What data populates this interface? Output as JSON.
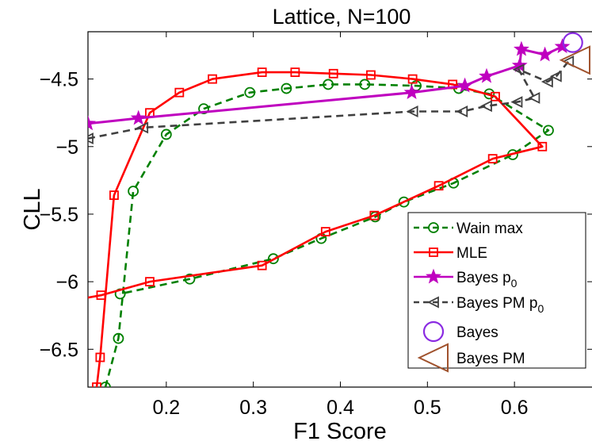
{
  "chart_data": {
    "type": "line",
    "title": "Lattice, N=100",
    "xlabel": "F1 Score",
    "ylabel": "CLL",
    "xlim": [
      0.11,
      0.69
    ],
    "ylim": [
      -6.78,
      -4.15
    ],
    "xticks": [
      0.2,
      0.3,
      0.4,
      0.5,
      0.6
    ],
    "yticks": [
      -6.5,
      -6,
      -5.5,
      -5,
      -4.5
    ],
    "xtick_labels": [
      "0.2",
      "0.3",
      "0.4",
      "0.5",
      "0.6"
    ],
    "ytick_labels": [
      "−6.5",
      "−6",
      "−5.5",
      "−5",
      "−4.5"
    ],
    "grid": false,
    "legend_position": "lower-right",
    "series": [
      {
        "name": "Wain max",
        "color": "#008000",
        "line_style": "dashed",
        "marker": "circle",
        "x": [
          0.13,
          0.145,
          0.162,
          0.2,
          0.243,
          0.296,
          0.338,
          0.386,
          0.428,
          0.487,
          0.536,
          0.571,
          0.639,
          0.598,
          0.53,
          0.473,
          0.44,
          0.378,
          0.323,
          0.227,
          0.147
        ],
        "y": [
          -6.78,
          -6.42,
          -5.33,
          -4.91,
          -4.72,
          -4.6,
          -4.57,
          -4.54,
          -4.54,
          -4.55,
          -4.57,
          -4.61,
          -4.88,
          -5.06,
          -5.27,
          -5.41,
          -5.52,
          -5.68,
          -5.83,
          -5.98,
          -6.09
        ]
      },
      {
        "name": "MLE",
        "color": "#ff0000",
        "line_style": "solid",
        "marker": "square",
        "x": [
          0.12,
          0.124,
          0.14,
          0.181,
          0.215,
          0.253,
          0.31,
          0.348,
          0.392,
          0.435,
          0.483,
          0.529,
          0.578,
          0.632,
          0.575,
          0.513,
          0.439,
          0.383,
          0.31,
          0.181,
          0.125,
          0.108
        ],
        "y": [
          -6.78,
          -6.56,
          -5.36,
          -4.75,
          -4.6,
          -4.5,
          -4.45,
          -4.45,
          -4.46,
          -4.47,
          -4.5,
          -4.54,
          -4.63,
          -5,
          -5.09,
          -5.29,
          -5.51,
          -5.63,
          -5.88,
          -6.0,
          -6.1,
          -6.12
        ]
      },
      {
        "name": "Bayes p0",
        "color": "#bf00bf",
        "line_style": "solid",
        "marker": "star",
        "x": [
          0.11,
          0.168,
          0.482,
          0.543,
          0.568,
          0.606,
          0.608,
          0.635,
          0.655
        ],
        "y": [
          -4.83,
          -4.79,
          -4.6,
          -4.55,
          -4.48,
          -4.4,
          -4.28,
          -4.32,
          -4.26
        ]
      },
      {
        "name": "Bayes PM p0",
        "color": "#404040",
        "line_style": "dashed",
        "marker": "triangle-left",
        "x": [
          0.11,
          0.173,
          0.483,
          0.54,
          0.568,
          0.603,
          0.623,
          0.605,
          0.638,
          0.648,
          0.662
        ],
        "y": [
          -4.94,
          -4.86,
          -4.74,
          -4.74,
          -4.7,
          -4.67,
          -4.64,
          -4.43,
          -4.52,
          -4.48,
          -4.37
        ]
      },
      {
        "name": "Bayes",
        "color": "#8a2be2",
        "line_style": "none",
        "marker": "circle-large",
        "x": [
          0.667
        ],
        "y": [
          -4.23
        ]
      },
      {
        "name": "Bayes PM",
        "color": "#a0522d",
        "line_style": "none",
        "marker": "triangle-left-large",
        "x": [
          0.67
        ],
        "y": [
          -4.36
        ]
      }
    ]
  },
  "legend": {
    "entries": [
      {
        "label": "Wain max",
        "sub": ""
      },
      {
        "label": "MLE",
        "sub": ""
      },
      {
        "label": "Bayes p",
        "sub": "0"
      },
      {
        "label": "Bayes PM p",
        "sub": "0"
      },
      {
        "label": "Bayes",
        "sub": ""
      },
      {
        "label": "Bayes PM",
        "sub": ""
      }
    ]
  }
}
